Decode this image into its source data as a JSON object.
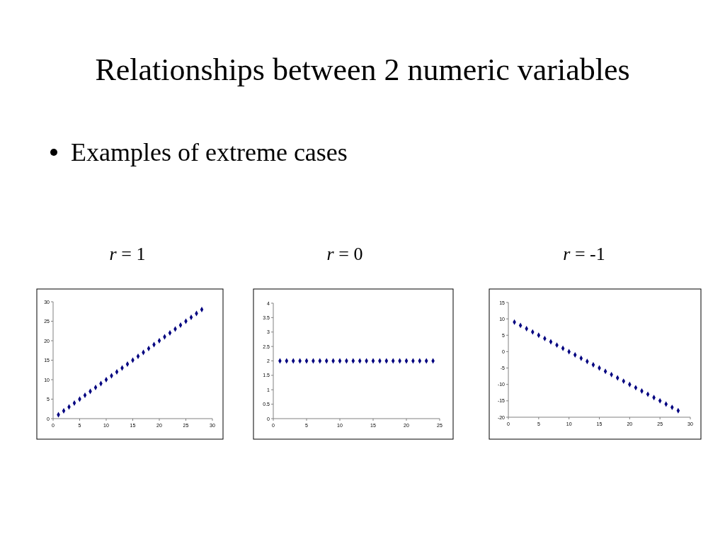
{
  "chart_data": [
    {
      "type": "scatter",
      "title": "r = 1",
      "annotations": [
        "Relationships between 2 numeric variables",
        "Examples of extreme cases"
      ],
      "marker": "diamond",
      "xlim": [
        0,
        30
      ],
      "xticks": [
        0,
        5,
        10,
        15,
        20,
        25,
        30
      ],
      "ylim": [
        0,
        30
      ],
      "yticks": [
        0,
        5,
        10,
        15,
        20,
        25,
        30
      ],
      "series": [
        {
          "color": "#000080",
          "x": [
            1,
            2,
            3,
            4,
            5,
            6,
            7,
            8,
            9,
            10,
            11,
            12,
            13,
            14,
            15,
            16,
            17,
            18,
            19,
            20,
            21,
            22,
            23,
            24,
            25,
            26,
            27,
            28
          ],
          "values": [
            1,
            2,
            3,
            4,
            5,
            6,
            7,
            8,
            9,
            10,
            11,
            12,
            13,
            14,
            15,
            16,
            17,
            18,
            19,
            20,
            21,
            22,
            23,
            24,
            25,
            26,
            27,
            28
          ]
        }
      ]
    },
    {
      "type": "scatter",
      "title": "r = 0",
      "marker": "diamond",
      "xlim": [
        0,
        25
      ],
      "xticks": [
        0,
        5,
        10,
        15,
        20,
        25
      ],
      "ylim": [
        0,
        4
      ],
      "yticks": [
        0,
        0.5,
        1,
        1.5,
        2,
        2.5,
        3,
        3.5,
        4
      ],
      "series": [
        {
          "color": "#000080",
          "x": [
            1,
            2,
            3,
            4,
            5,
            6,
            7,
            8,
            9,
            10,
            11,
            12,
            13,
            14,
            15,
            16,
            17,
            18,
            19,
            20,
            21,
            22,
            23,
            24
          ],
          "values": [
            2,
            2,
            2,
            2,
            2,
            2,
            2,
            2,
            2,
            2,
            2,
            2,
            2,
            2,
            2,
            2,
            2,
            2,
            2,
            2,
            2,
            2,
            2,
            2
          ]
        }
      ]
    },
    {
      "type": "scatter",
      "title": "r = -1",
      "marker": "diamond",
      "xlim": [
        0,
        30
      ],
      "xticks": [
        0,
        5,
        10,
        15,
        20,
        25,
        30
      ],
      "ylim": [
        -20,
        15
      ],
      "yticks": [
        -20,
        -15,
        -10,
        -5,
        0,
        5,
        10,
        15
      ],
      "series": [
        {
          "color": "#000080",
          "x": [
            1,
            2,
            3,
            4,
            5,
            6,
            7,
            8,
            9,
            10,
            11,
            12,
            13,
            14,
            15,
            16,
            17,
            18,
            19,
            20,
            21,
            22,
            23,
            24,
            25,
            26,
            27,
            28
          ],
          "values": [
            9,
            8,
            7,
            6,
            5,
            4,
            3,
            2,
            1,
            0,
            -1,
            -2,
            -3,
            -4,
            -5,
            -6,
            -7,
            -8,
            -9,
            -10,
            -11,
            -12,
            -13,
            -14,
            -15,
            -16,
            -17,
            -18
          ]
        }
      ]
    }
  ]
}
